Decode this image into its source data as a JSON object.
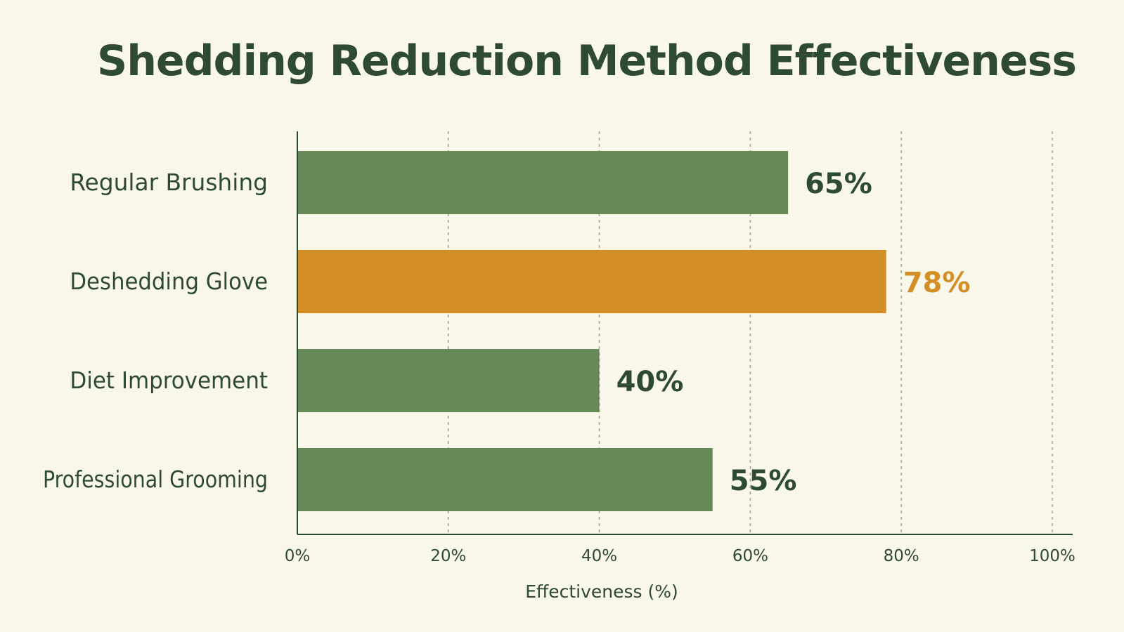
{
  "chart_data": {
    "type": "bar",
    "orientation": "horizontal",
    "title": "Shedding Reduction Method Effectiveness",
    "categories": [
      "Regular Brushing",
      "Deshedding Glove",
      "Diet Improvement",
      "Professional Grooming"
    ],
    "values": [
      65,
      78,
      40,
      55
    ],
    "value_labels": [
      "65%",
      "78%",
      "40%",
      "55%"
    ],
    "highlight_index": 1,
    "xlabel": "Effectiveness (%)",
    "ylabel": "",
    "xlim": [
      0,
      100
    ],
    "xticks": [
      0,
      20,
      40,
      60,
      80,
      100
    ],
    "xtick_labels": [
      "0%",
      "20%",
      "40%",
      "60%",
      "80%",
      "100%"
    ],
    "grid": "vertical dashed",
    "legend": "none"
  },
  "colors": {
    "background": "#f9f6ea",
    "bar": "#66895a",
    "highlight_bar": "#d38f26",
    "text": "#2e4a30",
    "highlight_text": "#d38f26",
    "grid": "#a39e8c",
    "axis": "#2e4a30"
  }
}
